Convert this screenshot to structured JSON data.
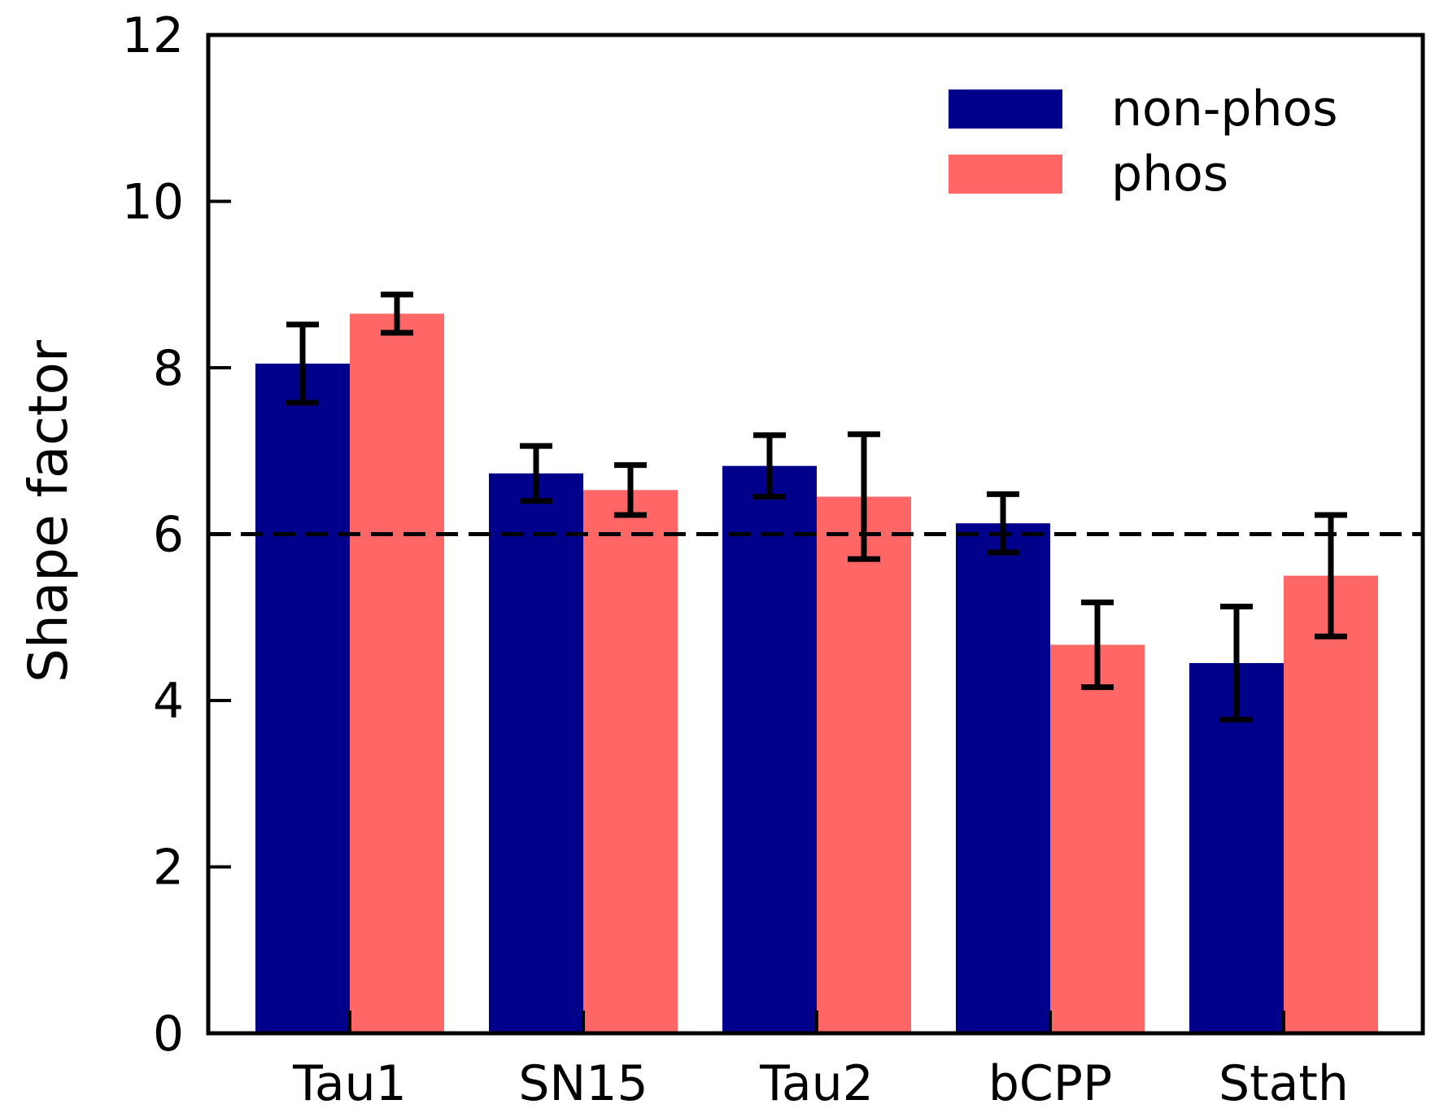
{
  "chart_data": {
    "type": "bar",
    "title": "",
    "xlabel": "",
    "ylabel": "Shape factor",
    "categories": [
      "Tau1",
      "SN15",
      "Tau2",
      "bCPP",
      "Stath"
    ],
    "series": [
      {
        "name": "non-phos",
        "color": "#00008b",
        "values": [
          8.05,
          6.73,
          6.82,
          6.13,
          4.45
        ],
        "errors": [
          0.47,
          0.33,
          0.37,
          0.35,
          0.68
        ]
      },
      {
        "name": "phos",
        "color": "#ff6666",
        "values": [
          8.65,
          6.53,
          6.45,
          4.67,
          5.5
        ],
        "errors": [
          0.23,
          0.3,
          0.75,
          0.51,
          0.73
        ]
      }
    ],
    "ylim": [
      0,
      12
    ],
    "yticks": [
      "0",
      "2",
      "4",
      "6",
      "8",
      "10",
      "12"
    ],
    "reference_line": {
      "y": 6,
      "style": "dashed"
    },
    "legend": {
      "placement": "top-right"
    },
    "grid": false
  }
}
